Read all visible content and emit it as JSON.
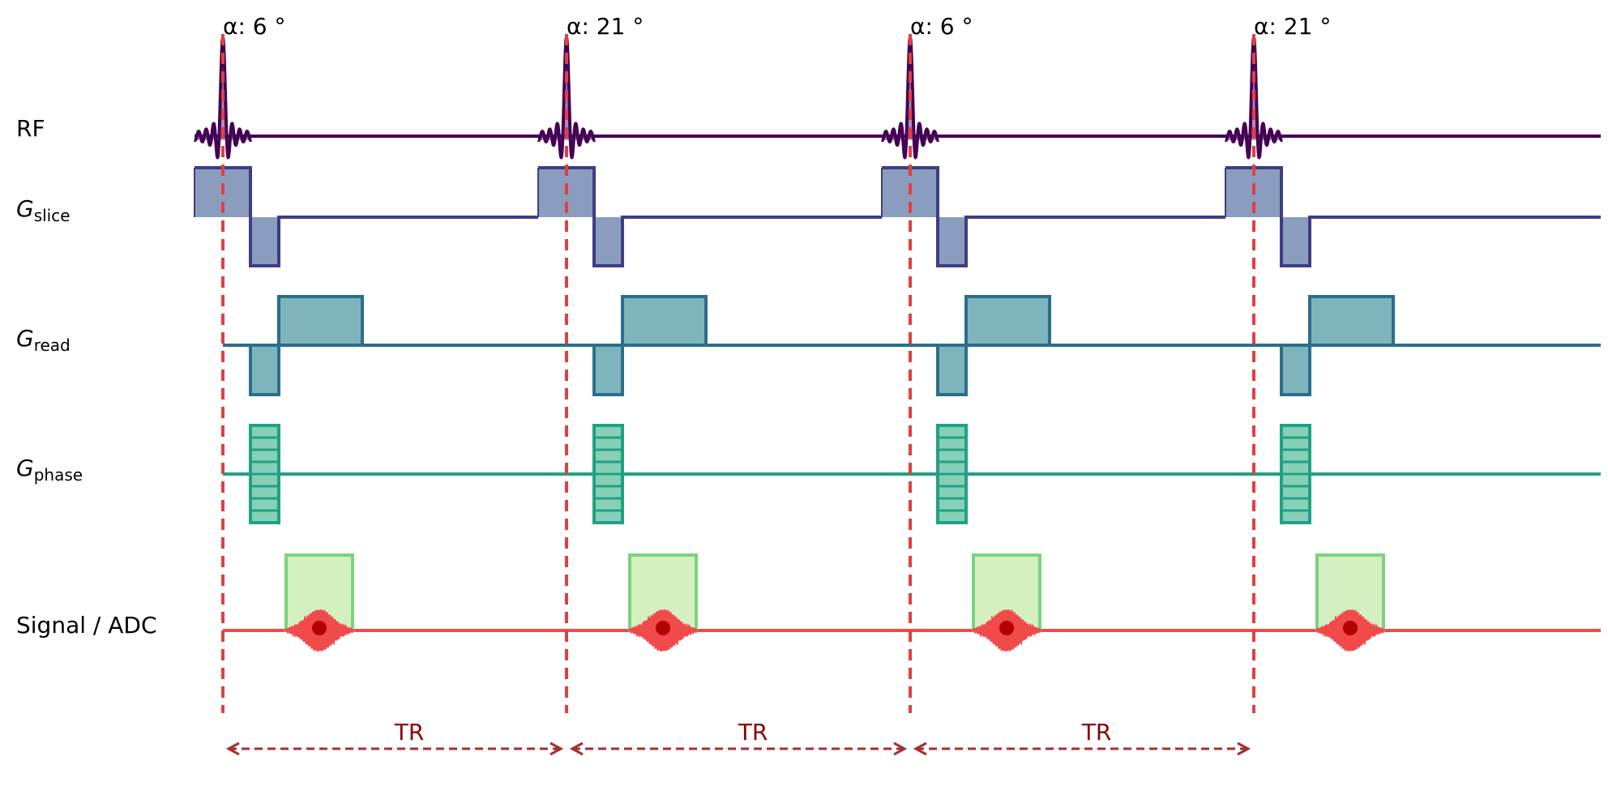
{
  "rows": {
    "rf": "RF",
    "slice": {
      "symbol": "G",
      "sub": "slice"
    },
    "read": {
      "symbol": "G",
      "sub": "read"
    },
    "phase": {
      "symbol": "G",
      "sub": "phase"
    },
    "signal": "Signal / ADC"
  },
  "pulses": [
    {
      "flip_label": "α: 6 °",
      "flip_angle": 6
    },
    {
      "flip_label": "α: 21 °",
      "flip_angle": 21
    },
    {
      "flip_label": "α: 6 °",
      "flip_angle": 6
    },
    {
      "flip_label": "α: 21 °",
      "flip_angle": 21
    }
  ],
  "tr_label": "TR",
  "tr_intervals": 3,
  "colors": {
    "rf": "#440154",
    "rf_fill": "#8b6aa3",
    "slice": "#3e3d85",
    "slice_fill": "#8a9dbf",
    "read": "#2c6e8a",
    "read_fill": "#7eb5bc",
    "phase": "#21a184",
    "phase_fill": "#86d0b7",
    "signal": "#f04a4a",
    "adc_fill": "#d4f0c0",
    "adc_stroke": "#7cd37c",
    "echo_dot": "#b30000",
    "marker": "#e04040",
    "tr_arrow": "#a33030",
    "tr_text": "#8b0000"
  }
}
